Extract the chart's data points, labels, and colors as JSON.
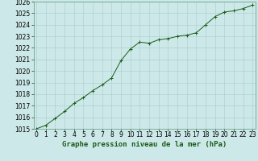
{
  "x": [
    0,
    1,
    2,
    3,
    4,
    5,
    6,
    7,
    8,
    9,
    10,
    11,
    12,
    13,
    14,
    15,
    16,
    17,
    18,
    19,
    20,
    21,
    22,
    23
  ],
  "y": [
    1015.0,
    1015.3,
    1015.9,
    1016.5,
    1017.2,
    1017.7,
    1018.3,
    1018.8,
    1019.4,
    1020.9,
    1021.9,
    1022.5,
    1022.4,
    1022.7,
    1022.8,
    1023.0,
    1023.1,
    1023.3,
    1024.0,
    1024.7,
    1025.1,
    1025.2,
    1025.4,
    1025.7
  ],
  "line_color": "#1a5c1a",
  "marker": "+",
  "marker_size": 3,
  "marker_lw": 0.7,
  "line_width": 0.7,
  "bg_color": "#cce8e8",
  "grid_color": "#aacccc",
  "title": "Graphe pression niveau de la mer (hPa)",
  "xlabel_ticks": [
    "0",
    "1",
    "2",
    "3",
    "4",
    "5",
    "6",
    "7",
    "8",
    "9",
    "10",
    "11",
    "12",
    "13",
    "14",
    "15",
    "16",
    "17",
    "18",
    "19",
    "20",
    "21",
    "22",
    "23"
  ],
  "ylim": [
    1015,
    1026
  ],
  "yticks": [
    1015,
    1016,
    1017,
    1018,
    1019,
    1020,
    1021,
    1022,
    1023,
    1024,
    1025,
    1026
  ],
  "title_fontsize": 6.5,
  "tick_fontsize": 5.5,
  "xlim": [
    -0.3,
    23.3
  ]
}
